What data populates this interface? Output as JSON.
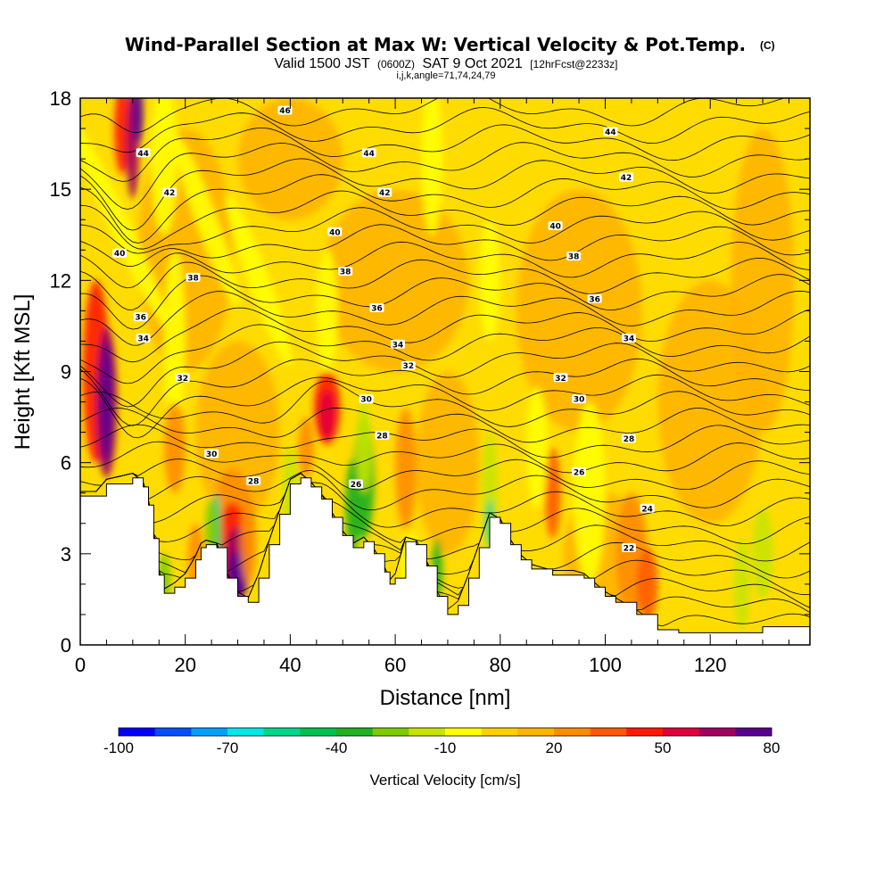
{
  "header": {
    "title": "Wind-Parallel Section at Max W: Vertical Velocity & Pot.Temp.",
    "copyright": "(C)",
    "valid_prefix": "Valid 1500 JST",
    "valid_z": "(0600Z)",
    "valid_date": "SAT 9 Oct 2021",
    "forecast": "[12hrFcst@2233z]",
    "indices": "i,j,k,angle=71,74,24,79"
  },
  "chart_data": {
    "type": "heatmap",
    "title": "Wind-Parallel Section at Max W: Vertical Velocity & Pot.Temp.",
    "xlabel": "Distance [nm]",
    "ylabel": "Height [Kft MSL]",
    "xlim": [
      0,
      139
    ],
    "ylim": [
      0,
      18
    ],
    "x_ticks": [
      "0",
      "20",
      "40",
      "60",
      "80",
      "100",
      "120"
    ],
    "y_ticks": [
      "0",
      "3",
      "6",
      "9",
      "12",
      "15",
      "18"
    ],
    "x_tick_values": [
      0,
      20,
      40,
      60,
      80,
      100,
      120
    ],
    "y_tick_values": [
      0,
      3,
      6,
      9,
      12,
      15,
      18
    ],
    "colorbar": {
      "label": "Vertical Velocity [cm/s]",
      "min": -100,
      "max": 80,
      "step": 10,
      "tick_labels": [
        "-100",
        "-70",
        "-40",
        "-10",
        "20",
        "50",
        "80"
      ],
      "tick_values": [
        -100,
        -70,
        -40,
        -10,
        20,
        50,
        80
      ],
      "colors": [
        "#0000ff",
        "#0050ff",
        "#00a0ff",
        "#00e8e8",
        "#00d68a",
        "#00c050",
        "#20b020",
        "#7ccc00",
        "#c8e400",
        "#ffff00",
        "#ffd000",
        "#ffb400",
        "#ff8c00",
        "#ff5a00",
        "#ff1a00",
        "#e0003c",
        "#a00060",
        "#5a0090"
      ]
    },
    "terrain_height_kft": [
      [
        0,
        4.9
      ],
      [
        3,
        4.9
      ],
      [
        5,
        5.3
      ],
      [
        10,
        5.5
      ],
      [
        12,
        5.2
      ],
      [
        13,
        4.6
      ],
      [
        14,
        3.5
      ],
      [
        15,
        2.3
      ],
      [
        16,
        1.7
      ],
      [
        18,
        1.9
      ],
      [
        20,
        2.2
      ],
      [
        22,
        2.8
      ],
      [
        23,
        3.2
      ],
      [
        24,
        3.3
      ],
      [
        26,
        3.2
      ],
      [
        28,
        2.2
      ],
      [
        30,
        1.6
      ],
      [
        32,
        1.4
      ],
      [
        34,
        2.2
      ],
      [
        36,
        3.3
      ],
      [
        38,
        4.3
      ],
      [
        40,
        5.3
      ],
      [
        42,
        5.5
      ],
      [
        44,
        5.2
      ],
      [
        46,
        4.8
      ],
      [
        48,
        4.2
      ],
      [
        50,
        3.6
      ],
      [
        52,
        3.2
      ],
      [
        54,
        3.4
      ],
      [
        56,
        3.0
      ],
      [
        58,
        2.4
      ],
      [
        59,
        2.0
      ],
      [
        60,
        2.2
      ],
      [
        62,
        3.4
      ],
      [
        64,
        3.3
      ],
      [
        66,
        2.6
      ],
      [
        68,
        1.6
      ],
      [
        70,
        1.0
      ],
      [
        72,
        1.3
      ],
      [
        74,
        2.2
      ],
      [
        76,
        3.2
      ],
      [
        78,
        4.2
      ],
      [
        80,
        4.0
      ],
      [
        82,
        3.3
      ],
      [
        84,
        2.8
      ],
      [
        86,
        2.5
      ],
      [
        90,
        2.3
      ],
      [
        94,
        2.3
      ],
      [
        96,
        2.2
      ],
      [
        98,
        1.9
      ],
      [
        100,
        1.6
      ],
      [
        102,
        1.4
      ],
      [
        106,
        1.0
      ],
      [
        110,
        0.5
      ],
      [
        114,
        0.4
      ],
      [
        120,
        0.4
      ],
      [
        126,
        0.4
      ],
      [
        130,
        0.6
      ],
      [
        139,
        0.6
      ]
    ],
    "theta_contour_labels": [
      {
        "value": "46",
        "x": 39,
        "y": 17.6
      },
      {
        "value": "44",
        "x": 12,
        "y": 16.2
      },
      {
        "value": "44",
        "x": 55,
        "y": 16.2
      },
      {
        "value": "44",
        "x": 101,
        "y": 16.9
      },
      {
        "value": "42",
        "x": 17,
        "y": 14.9
      },
      {
        "value": "42",
        "x": 58,
        "y": 14.9
      },
      {
        "value": "42",
        "x": 104,
        "y": 15.4
      },
      {
        "value": "40",
        "x": 7.5,
        "y": 12.9
      },
      {
        "value": "40",
        "x": 48.5,
        "y": 13.6
      },
      {
        "value": "40",
        "x": 90.5,
        "y": 13.8
      },
      {
        "value": "38",
        "x": 21.5,
        "y": 12.1
      },
      {
        "value": "38",
        "x": 50.5,
        "y": 12.3
      },
      {
        "value": "38",
        "x": 94,
        "y": 12.8
      },
      {
        "value": "36",
        "x": 11.5,
        "y": 10.8
      },
      {
        "value": "36",
        "x": 56.5,
        "y": 11.1
      },
      {
        "value": "36",
        "x": 98,
        "y": 11.4
      },
      {
        "value": "34",
        "x": 12,
        "y": 10.1
      },
      {
        "value": "34",
        "x": 60.5,
        "y": 9.9
      },
      {
        "value": "34",
        "x": 104.5,
        "y": 10.1
      },
      {
        "value": "32",
        "x": 19.5,
        "y": 8.8
      },
      {
        "value": "32",
        "x": 62.5,
        "y": 9.2
      },
      {
        "value": "32",
        "x": 91.5,
        "y": 8.8
      },
      {
        "value": "30",
        "x": 25,
        "y": 6.3
      },
      {
        "value": "30",
        "x": 54.5,
        "y": 8.1
      },
      {
        "value": "30",
        "x": 95,
        "y": 8.1
      },
      {
        "value": "28",
        "x": 33,
        "y": 5.4
      },
      {
        "value": "28",
        "x": 57.5,
        "y": 6.9
      },
      {
        "value": "28",
        "x": 104.5,
        "y": 6.8
      },
      {
        "value": "26",
        "x": 52.5,
        "y": 5.3
      },
      {
        "value": "26",
        "x": 95,
        "y": 5.7
      },
      {
        "value": "24",
        "x": 108,
        "y": 4.5
      },
      {
        "value": "22",
        "x": 104.5,
        "y": 3.2
      }
    ]
  }
}
